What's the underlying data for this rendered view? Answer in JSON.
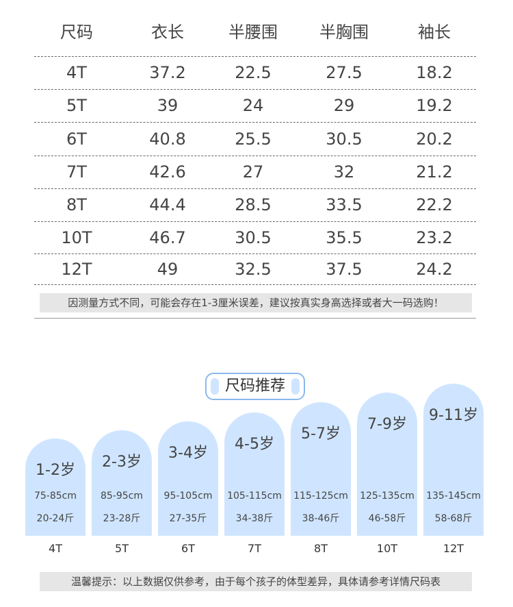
{
  "table": {
    "header": [
      "尺码",
      "衣长",
      "半腰围",
      "半胸围",
      "袖长"
    ],
    "rows": [
      [
        "4T",
        37.2,
        22.5,
        27.5,
        18.2
      ],
      [
        "5T",
        39,
        24,
        29,
        19.2
      ],
      [
        "6T",
        40.8,
        25.5,
        30.5,
        20.2
      ],
      [
        "7T",
        42.6,
        27,
        32,
        21.2
      ],
      [
        "8T",
        44.4,
        28.5,
        33.5,
        22.2
      ],
      [
        "10T",
        46.7,
        30.5,
        35.5,
        23.2
      ],
      [
        "12T",
        49,
        32.5,
        37.5,
        24.2
      ]
    ],
    "note": "因测量方式不同，可能会存在1-3厘米误差，建议按真实身高选择或者大一码选购！"
  },
  "recommend": {
    "title": "尺码推荐",
    "cards": [
      {
        "age": "1-2岁",
        "height": "75-85cm",
        "weight": "20-24斤",
        "size": "4T"
      },
      {
        "age": "2-3岁",
        "height": "85-95cm",
        "weight": "23-28斤",
        "size": "5T"
      },
      {
        "age": "3-4岁",
        "height": "95-105cm",
        "weight": "27-35斤",
        "size": "6T"
      },
      {
        "age": "4-5岁",
        "height": "105-115cm",
        "weight": "34-38斤",
        "size": "7T"
      },
      {
        "age": "5-7岁",
        "height": "115-125cm",
        "weight": "38-46斤",
        "size": "8T"
      },
      {
        "age": "7-9岁",
        "height": "125-135cm",
        "weight": "46-58斤",
        "size": "10T"
      },
      {
        "age": "9-11岁",
        "height": "135-145cm",
        "weight": "58-68斤",
        "size": "12T"
      }
    ],
    "tip": "温馨提示：以上数据仅供参考，由于每个孩子的体型差异，具体请参考详情尺码表"
  }
}
